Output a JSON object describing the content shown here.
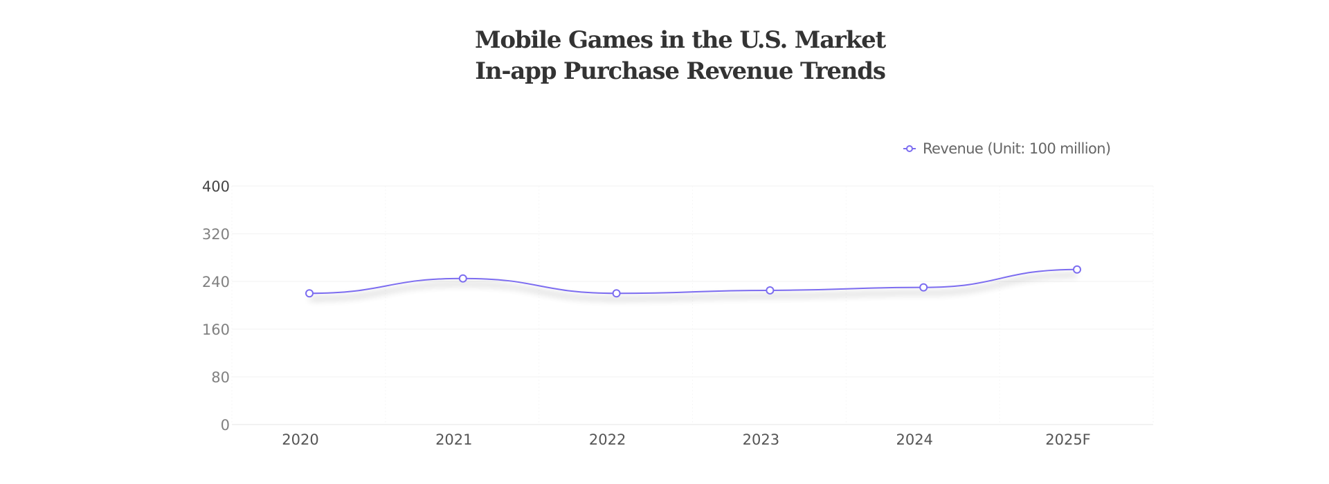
{
  "title": {
    "line1": "Mobile Games in the U.S. Market",
    "line2": "In-app Purchase Revenue Trends"
  },
  "legend": {
    "label": "Revenue (Unit: 100 million)",
    "position": "top-right"
  },
  "colors": {
    "line": "#7b6cf0",
    "marker_stroke": "#7b6cf0",
    "marker_fill": "#ffffff",
    "title": "#333333",
    "grid": "#f0f0f0",
    "axis_label": "#808080",
    "shadow": "#888888"
  },
  "chart_data": {
    "type": "line",
    "title": "Mobile Games in the U.S. Market In-app Purchase Revenue Trends",
    "xlabel": "",
    "ylabel": "",
    "categories": [
      "2020",
      "2021",
      "2022",
      "2023",
      "2024",
      "2025F"
    ],
    "series": [
      {
        "name": "Revenue (Unit: 100 million)",
        "values": [
          220,
          245,
          220,
          225,
          230,
          260
        ]
      }
    ],
    "ylim": [
      0,
      400
    ],
    "yticks": [
      0,
      80,
      160,
      240,
      320,
      400
    ],
    "grid": true,
    "smooth": true,
    "legend": "top-right"
  }
}
